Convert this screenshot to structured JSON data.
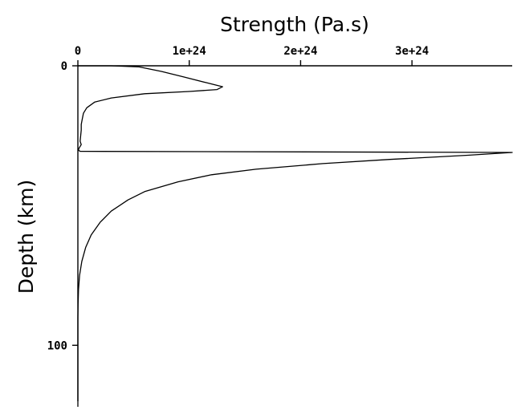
{
  "chart_data": {
    "type": "line",
    "xlabel": "Strength (Pa.s)",
    "ylabel": "Depth (km)",
    "x_ticks": [
      "0",
      "1e+24",
      "2e+24",
      "3e+24"
    ],
    "y_ticks": [
      "0",
      "100"
    ],
    "x_tick_values": [
      0,
      1e+24,
      2e+24,
      3e+24
    ],
    "y_tick_values": [
      0,
      100
    ],
    "xlim": [
      0,
      3.9e+24
    ],
    "ylim": [
      0,
      120
    ],
    "y_inverted": true,
    "x_axis_position": "top",
    "grid": false,
    "series": [
      {
        "x": [
          0,
          3e+23,
          5.5e+23,
          7.5e+23,
          9.5e+23,
          1.15e+24,
          1.3e+24,
          1.25e+24,
          1e+24,
          6e+23,
          3e+23,
          1.5e+23,
          8e+22,
          5e+22,
          4e+22,
          3e+22,
          3e+22,
          2.5e+22,
          2e+22,
          3e+22,
          1e+22,
          5e+21,
          2e+22,
          3.9e+24,
          3.5e+24,
          2.8e+24,
          2.2e+24,
          1.6e+24,
          1.2e+24,
          9e+23,
          6e+23,
          4.5e+23,
          3e+23,
          2e+23,
          1.2e+23,
          7e+22,
          3.5e+22,
          1.5e+22,
          6e+21,
          2e+21,
          0,
          0
        ],
        "y": [
          0,
          0,
          0.4,
          2,
          4,
          6,
          7.5,
          8.5,
          9.2,
          10,
          11.5,
          13,
          15,
          17,
          19,
          21,
          23,
          25,
          27,
          28.2,
          29.5,
          30.2,
          30.6,
          31,
          32,
          33.5,
          35,
          37,
          39,
          41.5,
          45,
          48,
          52,
          56,
          60.5,
          65,
          70,
          75,
          80,
          85,
          90,
          122
        ]
      }
    ]
  }
}
